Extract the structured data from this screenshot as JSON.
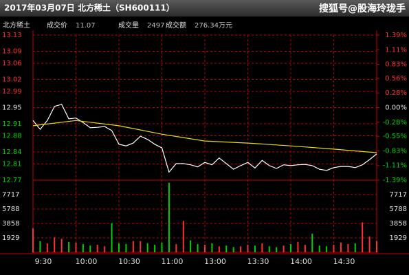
{
  "header": {
    "title": "2017年03月07日 北方稀土（SH600111）",
    "watermark": "搜狐号@股海玲珑手"
  },
  "info": {
    "name": "北方稀土",
    "fields": [
      {
        "label": "成交价",
        "value": "11.07"
      },
      {
        "label": "成交量",
        "value": "2497"
      },
      {
        "label": "成交额",
        "value": "276.34万元"
      }
    ]
  },
  "chart_data": {
    "type": "line",
    "x": [
      0,
      5,
      10,
      15,
      20,
      25,
      30,
      35,
      40,
      45,
      50,
      55,
      60,
      65,
      70,
      75,
      80,
      85,
      90,
      95,
      100,
      105,
      110,
      115,
      120,
      125,
      130,
      135,
      140,
      145,
      150,
      155,
      160,
      165,
      170,
      175,
      180,
      185,
      190,
      195,
      200,
      205,
      210,
      215,
      220,
      225,
      230,
      235,
      240
    ],
    "xlim": [
      0,
      240
    ],
    "xticks": [
      {
        "value": 0,
        "label": "9:30"
      },
      {
        "value": 30,
        "label": "10:00"
      },
      {
        "value": 60,
        "label": "10:30"
      },
      {
        "value": 90,
        "label": "11:00"
      },
      {
        "value": 120,
        "label": "13:00"
      },
      {
        "value": 150,
        "label": "13:30"
      },
      {
        "value": 180,
        "label": "14:00"
      },
      {
        "value": 210,
        "label": "14:30"
      }
    ],
    "series": [
      {
        "name": "price",
        "color": "#ffffff",
        "values": [
          12.918,
          12.896,
          12.918,
          12.953,
          12.958,
          12.922,
          12.924,
          12.913,
          12.9,
          12.901,
          12.903,
          12.893,
          12.859,
          12.855,
          12.862,
          12.879,
          12.871,
          12.859,
          12.85,
          12.79,
          12.811,
          12.811,
          12.808,
          12.803,
          12.814,
          12.808,
          12.825,
          12.811,
          12.797,
          12.806,
          12.814,
          12.8,
          12.819,
          12.806,
          12.799,
          12.808,
          12.806,
          12.808,
          12.809,
          12.806,
          12.797,
          12.794,
          12.801,
          12.804,
          12.804,
          12.801,
          12.808,
          12.821,
          12.835
        ]
      },
      {
        "name": "average",
        "color": "#e8e000",
        "x": [
          0,
          30,
          60,
          90,
          120,
          150,
          180,
          210,
          240
        ],
        "values": [
          12.905,
          12.918,
          12.905,
          12.884,
          12.867,
          12.862,
          12.855,
          12.847,
          12.838
        ]
      }
    ],
    "ylim": [
      12.77,
      13.13
    ],
    "yticks": [
      13.13,
      13.09,
      13.06,
      13.02,
      12.99,
      12.95,
      12.91,
      12.88,
      12.84,
      12.81,
      12.77
    ],
    "y2lim": [
      -1.39,
      1.39
    ],
    "y2ticks": [
      {
        "value": 1.39,
        "label": "1.39%"
      },
      {
        "value": 1.11,
        "label": "1.11%"
      },
      {
        "value": 0.83,
        "label": "0.83%"
      },
      {
        "value": 0.56,
        "label": "0.56%"
      },
      {
        "value": 0.28,
        "label": "0.28%"
      },
      {
        "value": 0,
        "label": "0.00%"
      },
      {
        "value": -0.28,
        "label": "-0.28%"
      },
      {
        "value": -0.55,
        "label": "-0.55%"
      },
      {
        "value": -0.83,
        "label": "-0.83%"
      },
      {
        "value": -1.11,
        "label": "-1.11%"
      },
      {
        "value": -1.39,
        "label": "-1.39%"
      }
    ],
    "grid_color": "#c00000",
    "up_color": "#ff3030",
    "down_color": "#00d000",
    "flat_color": "#e0e0e0",
    "volume": {
      "values": [
        3200,
        1500,
        1200,
        2000,
        1800,
        1400,
        1300,
        1100,
        900,
        1000,
        800,
        3900,
        1200,
        1100,
        1500,
        1500,
        1200,
        1000,
        1300,
        9300,
        1100,
        4200,
        1600,
        1100,
        1000,
        1200,
        800,
        900,
        700,
        800,
        1000,
        900,
        1200,
        800,
        700,
        900,
        1100,
        1400,
        1000,
        2500,
        900,
        800,
        1000,
        1300,
        1100,
        1200,
        4000,
        2100,
        1500
      ],
      "ylim": [
        0,
        9646
      ],
      "yticks": [
        7717,
        5788,
        3858,
        1929
      ]
    }
  }
}
